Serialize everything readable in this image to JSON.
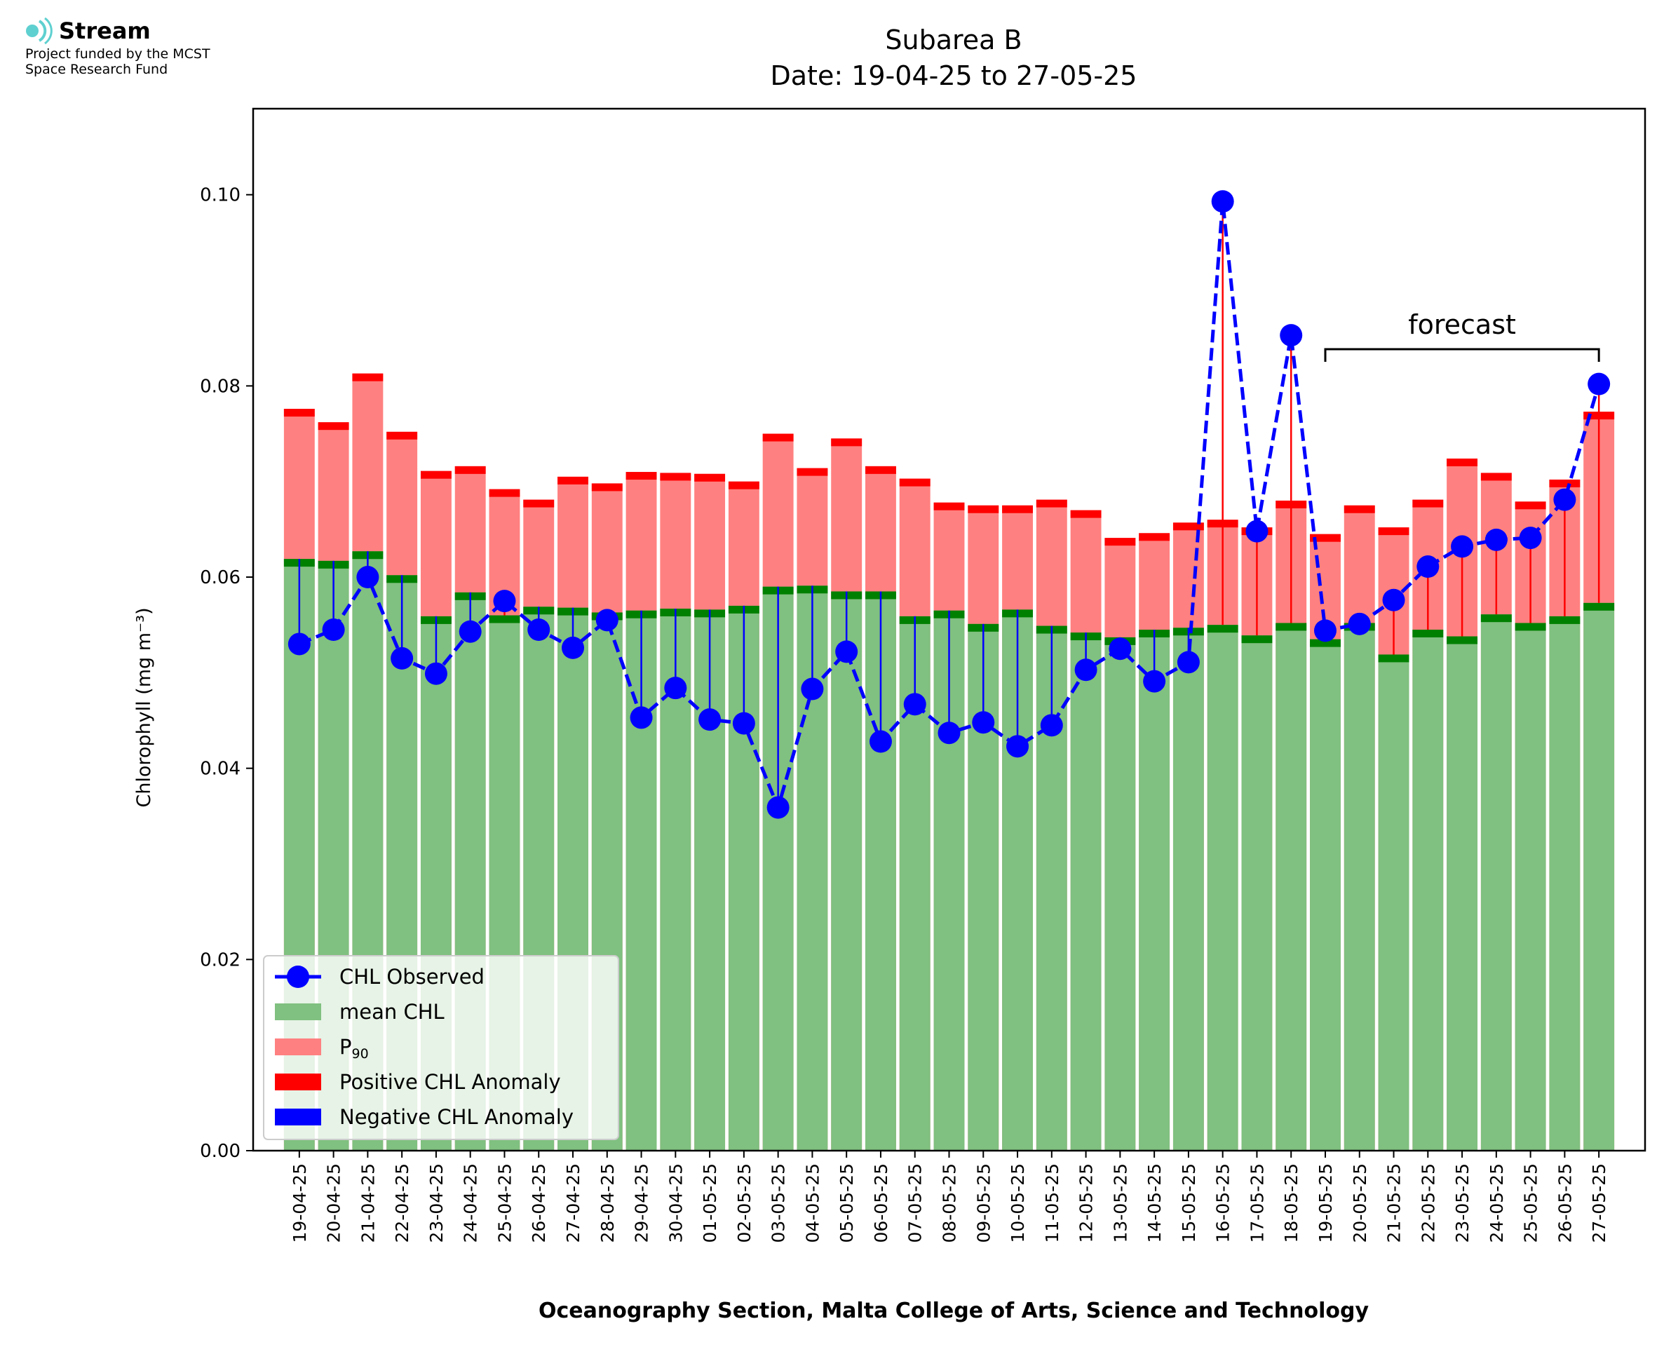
{
  "logo": {
    "name": "Stream",
    "subtitle_line1": "Project funded by the MCST",
    "subtitle_line2": "Space Research Fund",
    "color": "#5fd0d0"
  },
  "colors": {
    "mean": "#80c080",
    "mean_edge": "#008000",
    "p90": "#ff8080",
    "p90_edge": "#ff0000",
    "observed": "#0000ff",
    "positive_anomaly": "#ff0000",
    "negative_anomaly": "#0000ff"
  },
  "chart_data": {
    "type": "bar",
    "title": "Subarea B",
    "subtitle": "Date: 19-04-25 to 27-05-25",
    "xlabel": "Oceanography Section, Malta College of Arts, Science and Technology",
    "ylabel": "Chlorophyll (mg m⁻³)",
    "ylim": [
      0,
      0.109
    ],
    "yticks": [
      "0.00",
      "0.02",
      "0.04",
      "0.06",
      "0.08",
      "0.10"
    ],
    "legend_position": "lower-left",
    "legend": {
      "observed": "CHL Observed",
      "mean": "mean CHL",
      "p90": "P",
      "p90_sub": "90",
      "positive": "Positive CHL Anomaly",
      "negative": "Negative CHL Anomaly"
    },
    "forecast_label": "forecast",
    "forecast_range": [
      "19-05-25",
      "27-05-25"
    ],
    "categories": [
      "19-04-25",
      "20-04-25",
      "21-04-25",
      "22-04-25",
      "23-04-25",
      "24-04-25",
      "25-04-25",
      "26-04-25",
      "27-04-25",
      "28-04-25",
      "29-04-25",
      "30-04-25",
      "01-05-25",
      "02-05-25",
      "03-05-25",
      "04-05-25",
      "05-05-25",
      "06-05-25",
      "07-05-25",
      "08-05-25",
      "09-05-25",
      "10-05-25",
      "11-05-25",
      "12-05-25",
      "13-05-25",
      "14-05-25",
      "15-05-25",
      "16-05-25",
      "17-05-25",
      "18-05-25",
      "19-05-25",
      "20-05-25",
      "21-05-25",
      "22-05-25",
      "23-05-25",
      "24-05-25",
      "25-05-25",
      "26-05-25",
      "27-05-25"
    ],
    "series": [
      {
        "name": "mean CHL",
        "values": [
          0.0619,
          0.0617,
          0.0627,
          0.0602,
          0.0559,
          0.0584,
          0.056,
          0.0569,
          0.0568,
          0.0563,
          0.0565,
          0.0567,
          0.0566,
          0.057,
          0.059,
          0.0591,
          0.0585,
          0.0585,
          0.0559,
          0.0565,
          0.0551,
          0.0566,
          0.0549,
          0.0542,
          0.0537,
          0.0545,
          0.0547,
          0.055,
          0.0539,
          0.0552,
          0.0535,
          0.0552,
          0.0519,
          0.0545,
          0.0538,
          0.0561,
          0.0552,
          0.0559,
          0.0573
        ]
      },
      {
        "name": "P90",
        "values": [
          0.0776,
          0.0762,
          0.0813,
          0.0752,
          0.0711,
          0.0716,
          0.0692,
          0.0681,
          0.0705,
          0.0698,
          0.071,
          0.0709,
          0.0708,
          0.07,
          0.075,
          0.0714,
          0.0745,
          0.0716,
          0.0703,
          0.0678,
          0.0675,
          0.0675,
          0.0681,
          0.067,
          0.0641,
          0.0646,
          0.0657,
          0.066,
          0.0652,
          0.068,
          0.0645,
          0.0675,
          0.0652,
          0.0681,
          0.0724,
          0.0709,
          0.0679,
          0.0702,
          0.0773
        ]
      },
      {
        "name": "CHL Observed",
        "values": [
          0.053,
          0.0545,
          0.06,
          0.0515,
          0.0499,
          0.0543,
          0.0575,
          0.0545,
          0.0526,
          0.0555,
          0.0453,
          0.0484,
          0.0451,
          0.0447,
          0.0359,
          0.0483,
          0.0522,
          0.0428,
          0.0467,
          0.0437,
          0.0448,
          0.0423,
          0.0445,
          0.0503,
          0.0525,
          0.0491,
          0.0511,
          0.0993,
          0.0648,
          0.0853,
          0.0544,
          0.0551,
          0.0576,
          0.0611,
          0.0632,
          0.0639,
          0.0641,
          0.0681,
          0.0802
        ]
      }
    ]
  }
}
